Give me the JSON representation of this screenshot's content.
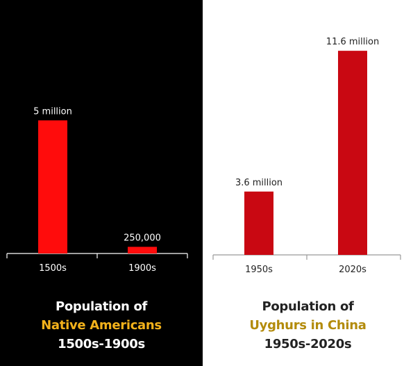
{
  "chart_data": [
    {
      "type": "bar",
      "categories": [
        "1500s",
        "1900s"
      ],
      "values": [
        5000000,
        250000
      ],
      "data_labels": [
        "5 million",
        "250,000"
      ],
      "ylim": [
        0,
        5400000
      ],
      "grid": false,
      "title_lines": [
        "Population of",
        "Native Americans",
        "1500s-1900s"
      ],
      "colors": {
        "background": "#000000",
        "bar": "#ff0c0c",
        "text": "#ffffff",
        "highlight": "#f3b21b",
        "axis": "#ffffff"
      }
    },
    {
      "type": "bar",
      "categories": [
        "1950s",
        "2020s"
      ],
      "values": [
        3600000,
        11600000
      ],
      "data_labels": [
        "3.6 million",
        "11.6 million"
      ],
      "ylim": [
        0,
        12000000
      ],
      "grid": false,
      "title_lines": [
        "Population of",
        "Uyghurs in China",
        "1950s-2020s"
      ],
      "colors": {
        "background": "#ffffff",
        "bar": "#c90812",
        "text": "#222222",
        "highlight": "#b38b0b",
        "axis": "#999999"
      }
    }
  ]
}
